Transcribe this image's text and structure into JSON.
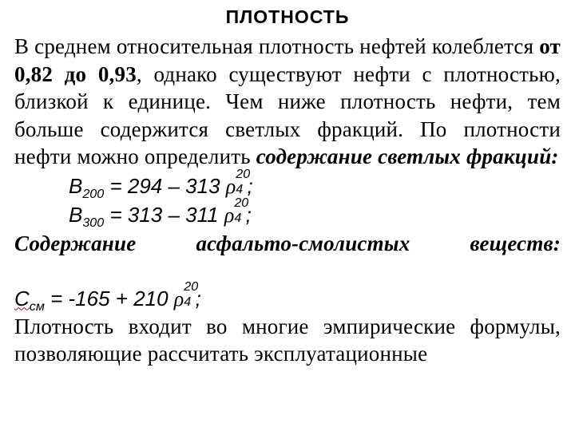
{
  "title": "ПЛОТНОСТЬ",
  "p1_a": "В среднем относительная плотность нефтей ко­леблется ",
  "p1_bold": "от 0,82 до 0,93",
  "p1_b": ", однако существуют неф­ти с плотностью, близкой к единице. Чем ниже плотность нефти, тем больше содержится светлых фракций. По плотности нефти можно определить ",
  "p1_bi": "содержание светлых фракций:",
  "f1": {
    "lhs": "В",
    "lhs_sub": "200",
    "eq": " = 294 – 313 ",
    "rho": "ρ",
    "sub": "4",
    "sup": "20",
    "end": ";"
  },
  "f2": {
    "lhs": "В",
    "lhs_sub": "300",
    "eq": " = 313 – 311 ",
    "rho": "ρ",
    "sub": "4",
    "sup": "20",
    "end": ";"
  },
  "p2_bi_a": "Содержание",
  "p2_bi_b": "асфальто-смолистых",
  "p2_bi_c": "веществ:",
  "csm": {
    "lhs": "С",
    "lhs_sub": "см",
    "eq": " = -165 + 210 ",
    "rho": "ρ",
    "sub": "4",
    "sup": "20",
    "end": ";"
  },
  "p3": "Плотность входит во многие эмпирические фор­мулы, позволяющие рассчитать эксплуатационные"
}
